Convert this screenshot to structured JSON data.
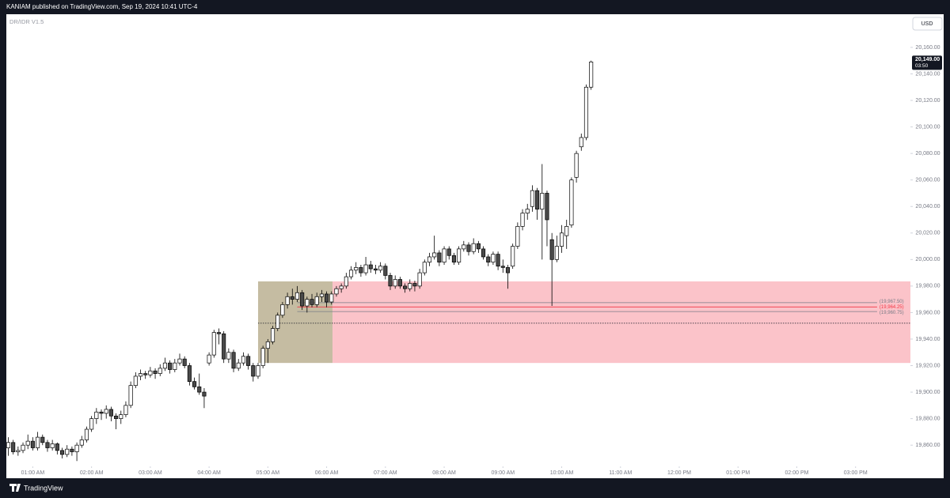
{
  "chart_data": {
    "type": "candlestick",
    "header": "KANIAM published on TradingView.com, Sep 19, 2024 10:41 UTC-4",
    "indicator": "DR/IDR V1.5",
    "currency": "USD",
    "footer": "TradingView",
    "last_price": {
      "value": 20149,
      "label": "20,149.00"
    },
    "countdown": "03:50",
    "up_color": "#ffffff",
    "down_color": "#4a4a4a",
    "outline_color": "#000000",
    "xlim": [
      33,
      956
    ],
    "ylim": [
      19844,
      20185
    ],
    "xticks": [
      {
        "value": 60,
        "label": "01:00 AM"
      },
      {
        "value": 120,
        "label": "02:00 AM"
      },
      {
        "value": 180,
        "label": "03:00 AM"
      },
      {
        "value": 240,
        "label": "04:00 AM"
      },
      {
        "value": 300,
        "label": "05:00 AM"
      },
      {
        "value": 360,
        "label": "06:00 AM"
      },
      {
        "value": 420,
        "label": "07:00 AM"
      },
      {
        "value": 480,
        "label": "08:00 AM"
      },
      {
        "value": 540,
        "label": "09:00 AM"
      },
      {
        "value": 600,
        "label": "10:00 AM"
      },
      {
        "value": 660,
        "label": "11:00 AM"
      },
      {
        "value": 720,
        "label": "12:00 PM"
      },
      {
        "value": 780,
        "label": "01:00 PM"
      },
      {
        "value": 840,
        "label": "02:00 PM"
      },
      {
        "value": 900,
        "label": "03:00 PM"
      }
    ],
    "yticks": [
      {
        "value": 19860,
        "label": "19,860.00"
      },
      {
        "value": 19880,
        "label": "19,880.00"
      },
      {
        "value": 19900,
        "label": "19,900.00"
      },
      {
        "value": 19920,
        "label": "19,920.00"
      },
      {
        "value": 19940,
        "label": "19,940.00"
      },
      {
        "value": 19960,
        "label": "19,960.00"
      },
      {
        "value": 19980,
        "label": "19,980.00"
      },
      {
        "value": 20000,
        "label": "20,000.00"
      },
      {
        "value": 20020,
        "label": "20,020.00"
      },
      {
        "value": 20040,
        "label": "20,040.00"
      },
      {
        "value": 20060,
        "label": "20,060.00"
      },
      {
        "value": 20080,
        "label": "20,080.00"
      },
      {
        "value": 20100,
        "label": "20,100.00"
      },
      {
        "value": 20120,
        "label": "20,120.00"
      },
      {
        "value": 20140,
        "label": "20,140.00"
      },
      {
        "value": 20160,
        "label": "20,160.00"
      }
    ],
    "zones": [
      {
        "x": [
          290,
          366
        ],
        "y": [
          19922,
          19983.5
        ],
        "color": "#c5bca2"
      },
      {
        "x": [
          366,
          956
        ],
        "y": [
          19922,
          19983.5
        ],
        "color": "#fbc3c9"
      }
    ],
    "levels": [
      {
        "value": 19967.5,
        "label": "(19,967.50)",
        "x": [
          330,
          922
        ],
        "color": "#787b86"
      },
      {
        "value": 19964.25,
        "label": "(19,964.25)",
        "x": [
          330,
          922
        ],
        "color": "#f23645"
      },
      {
        "value": 19960.75,
        "label": "(19,960.75)",
        "x": [
          330,
          922
        ],
        "color": "#787b86"
      }
    ],
    "dotted_level": {
      "value": 19952,
      "x": [
        290,
        956
      ]
    },
    "x": [
      35,
      40,
      45,
      50,
      55,
      60,
      65,
      70,
      75,
      80,
      85,
      90,
      95,
      100,
      105,
      110,
      115,
      120,
      125,
      130,
      135,
      140,
      145,
      150,
      155,
      160,
      165,
      170,
      175,
      180,
      185,
      190,
      195,
      200,
      205,
      210,
      215,
      220,
      225,
      230,
      235,
      240,
      245,
      250,
      255,
      260,
      265,
      270,
      275,
      280,
      285,
      290,
      295,
      300,
      305,
      310,
      315,
      320,
      325,
      330,
      335,
      340,
      345,
      350,
      355,
      360,
      365,
      370,
      375,
      380,
      385,
      390,
      395,
      400,
      405,
      410,
      415,
      420,
      425,
      430,
      435,
      440,
      445,
      450,
      455,
      460,
      465,
      470,
      475,
      480,
      485,
      490,
      495,
      500,
      505,
      510,
      515,
      520,
      525,
      530,
      535,
      540,
      545,
      550,
      555,
      560,
      565,
      570,
      575,
      580,
      585,
      590,
      595,
      600,
      605,
      610,
      615,
      620,
      625,
      630
    ],
    "open": [
      19858,
      19862,
      19855,
      19856,
      19860,
      19863,
      19858,
      19866,
      19862,
      19858,
      19861,
      19856,
      19853,
      19857,
      19855,
      19860,
      19864,
      19872,
      19880,
      19885,
      19884,
      19887,
      19882,
      19880,
      19883,
      19890,
      19905,
      19912,
      19914,
      19913,
      19916,
      19914,
      19918,
      19922,
      19917,
      19922,
      19925,
      19920,
      19908,
      19904,
      19900,
      19922,
      19928,
      19945,
      19944,
      19925,
      19930,
      19918,
      19922,
      19927,
      19920,
      19912,
      19920,
      19933,
      19938,
      19948,
      19958,
      19966,
      19972,
      19970,
      19975,
      19965,
      19970,
      19966,
      19972,
      19974,
      19968,
      19974,
      19978,
      19980,
      19987,
      19992,
      19994,
      19990,
      19996,
      19993,
      19992,
      19995,
      19988,
      19980,
      19985,
      19980,
      19978,
      19982,
      19980,
      19990,
      19998,
      20002,
      20005,
      19998,
      20008,
      20003,
      19998,
      20008,
      20011,
      20006,
      20012,
      20008,
      20002,
      19998,
      20004,
      19995,
      19994,
      19995,
      20010,
      20025,
      20035,
      20040,
      20052,
      20038,
      20050,
      20015,
      20000,
      20010,
      20018,
      20026,
      20062,
      20085,
      20092,
      20130
    ],
    "high": [
      19866,
      19864,
      19859,
      19862,
      19868,
      19866,
      19870,
      19868,
      19864,
      19864,
      19862,
      19858,
      19860,
      19859,
      19862,
      19867,
      19874,
      19882,
      19888,
      19887,
      19890,
      19889,
      19884,
      19886,
      19893,
      19908,
      19915,
      19917,
      19916,
      19919,
      19918,
      19921,
      19926,
      19924,
      19925,
      19929,
      19927,
      19922,
      19911,
      19914,
      19903,
      19930,
      19947,
      19948,
      19946,
      19933,
      19932,
      19925,
      19930,
      19929,
      19922,
      19922,
      19935,
      19940,
      19950,
      19960,
      19968,
      19975,
      19978,
      19980,
      19977,
      19972,
      19974,
      19975,
      19977,
      19976,
      19976,
      19980,
      19982,
      19990,
      19995,
      19998,
      19996,
      20002,
      19999,
      19996,
      19998,
      19997,
      19990,
      19988,
      19987,
      19982,
      19985,
      19984,
      19993,
      20000,
      20005,
      20018,
      20007,
      20010,
      20010,
      20005,
      20010,
      20014,
      20013,
      20016,
      20014,
      20010,
      20004,
      20006,
      20006,
      20000,
      19996,
      20012,
      20028,
      20038,
      20042,
      20056,
      20054,
      20072,
      20052,
      20020,
      20018,
      20026,
      20030,
      20062,
      20082,
      20095,
      20132,
      20150
    ],
    "low": [
      19852,
      19853,
      19852,
      19854,
      19857,
      19856,
      19856,
      19860,
      19855,
      19856,
      19853,
      19850,
      19851,
      19852,
      19848,
      19858,
      19862,
      19870,
      19876,
      19879,
      19880,
      19878,
      19872,
      19876,
      19881,
      19888,
      19903,
      19909,
      19910,
      19911,
      19910,
      19912,
      19916,
      19914,
      19915,
      19920,
      19918,
      19905,
      19902,
      19898,
      19888,
      19920,
      19926,
      19936,
      19922,
      19922,
      19915,
      19916,
      19920,
      19917,
      19908,
      19910,
      19918,
      19922,
      19936,
      19946,
      19956,
      19963,
      19966,
      19968,
      19962,
      19960,
      19964,
      19964,
      19968,
      19964,
      19966,
      19972,
      19975,
      19978,
      19985,
      19989,
      19987,
      19988,
      19990,
      19989,
      19990,
      19985,
      19977,
      19978,
      19978,
      19975,
      19976,
      19976,
      19978,
      19988,
      19995,
      20000,
      19995,
      19996,
      20000,
      19996,
      19996,
      20006,
      20003,
      20004,
      20005,
      20000,
      19995,
      19996,
      19992,
      19990,
      19978,
      19993,
      20008,
      20022,
      20030,
      20036,
      20030,
      20000,
      20010,
      19965,
      19998,
      20005,
      20008,
      20024,
      20058,
      20082,
      20090,
      20128
    ],
    "close": [
      19862,
      19855,
      19856,
      19860,
      19863,
      19858,
      19866,
      19862,
      19858,
      19861,
      19856,
      19853,
      19857,
      19855,
      19860,
      19864,
      19872,
      19880,
      19885,
      19884,
      19887,
      19882,
      19880,
      19883,
      19890,
      19905,
      19912,
      19914,
      19913,
      19916,
      19914,
      19918,
      19922,
      19917,
      19922,
      19925,
      19920,
      19908,
      19904,
      19900,
      19897,
      19928,
      19945,
      19944,
      19925,
      19930,
      19918,
      19922,
      19927,
      19920,
      19912,
      19920,
      19933,
      19938,
      19948,
      19958,
      19966,
      19972,
      19970,
      19975,
      19965,
      19970,
      19966,
      19972,
      19974,
      19968,
      19974,
      19978,
      19980,
      19987,
      19992,
      19994,
      19990,
      19996,
      19993,
      19992,
      19995,
      19988,
      19980,
      19985,
      19980,
      19978,
      19982,
      19980,
      19990,
      19998,
      20002,
      20005,
      19998,
      20008,
      20003,
      19998,
      20008,
      20011,
      20006,
      20012,
      20008,
      20002,
      19998,
      20004,
      19995,
      19994,
      19990,
      20010,
      20025,
      20035,
      20038,
      20052,
      20038,
      20050,
      20030,
      20000,
      20010,
      20020,
      20025,
      20060,
      20080,
      20092,
      20130,
      20149
    ]
  }
}
